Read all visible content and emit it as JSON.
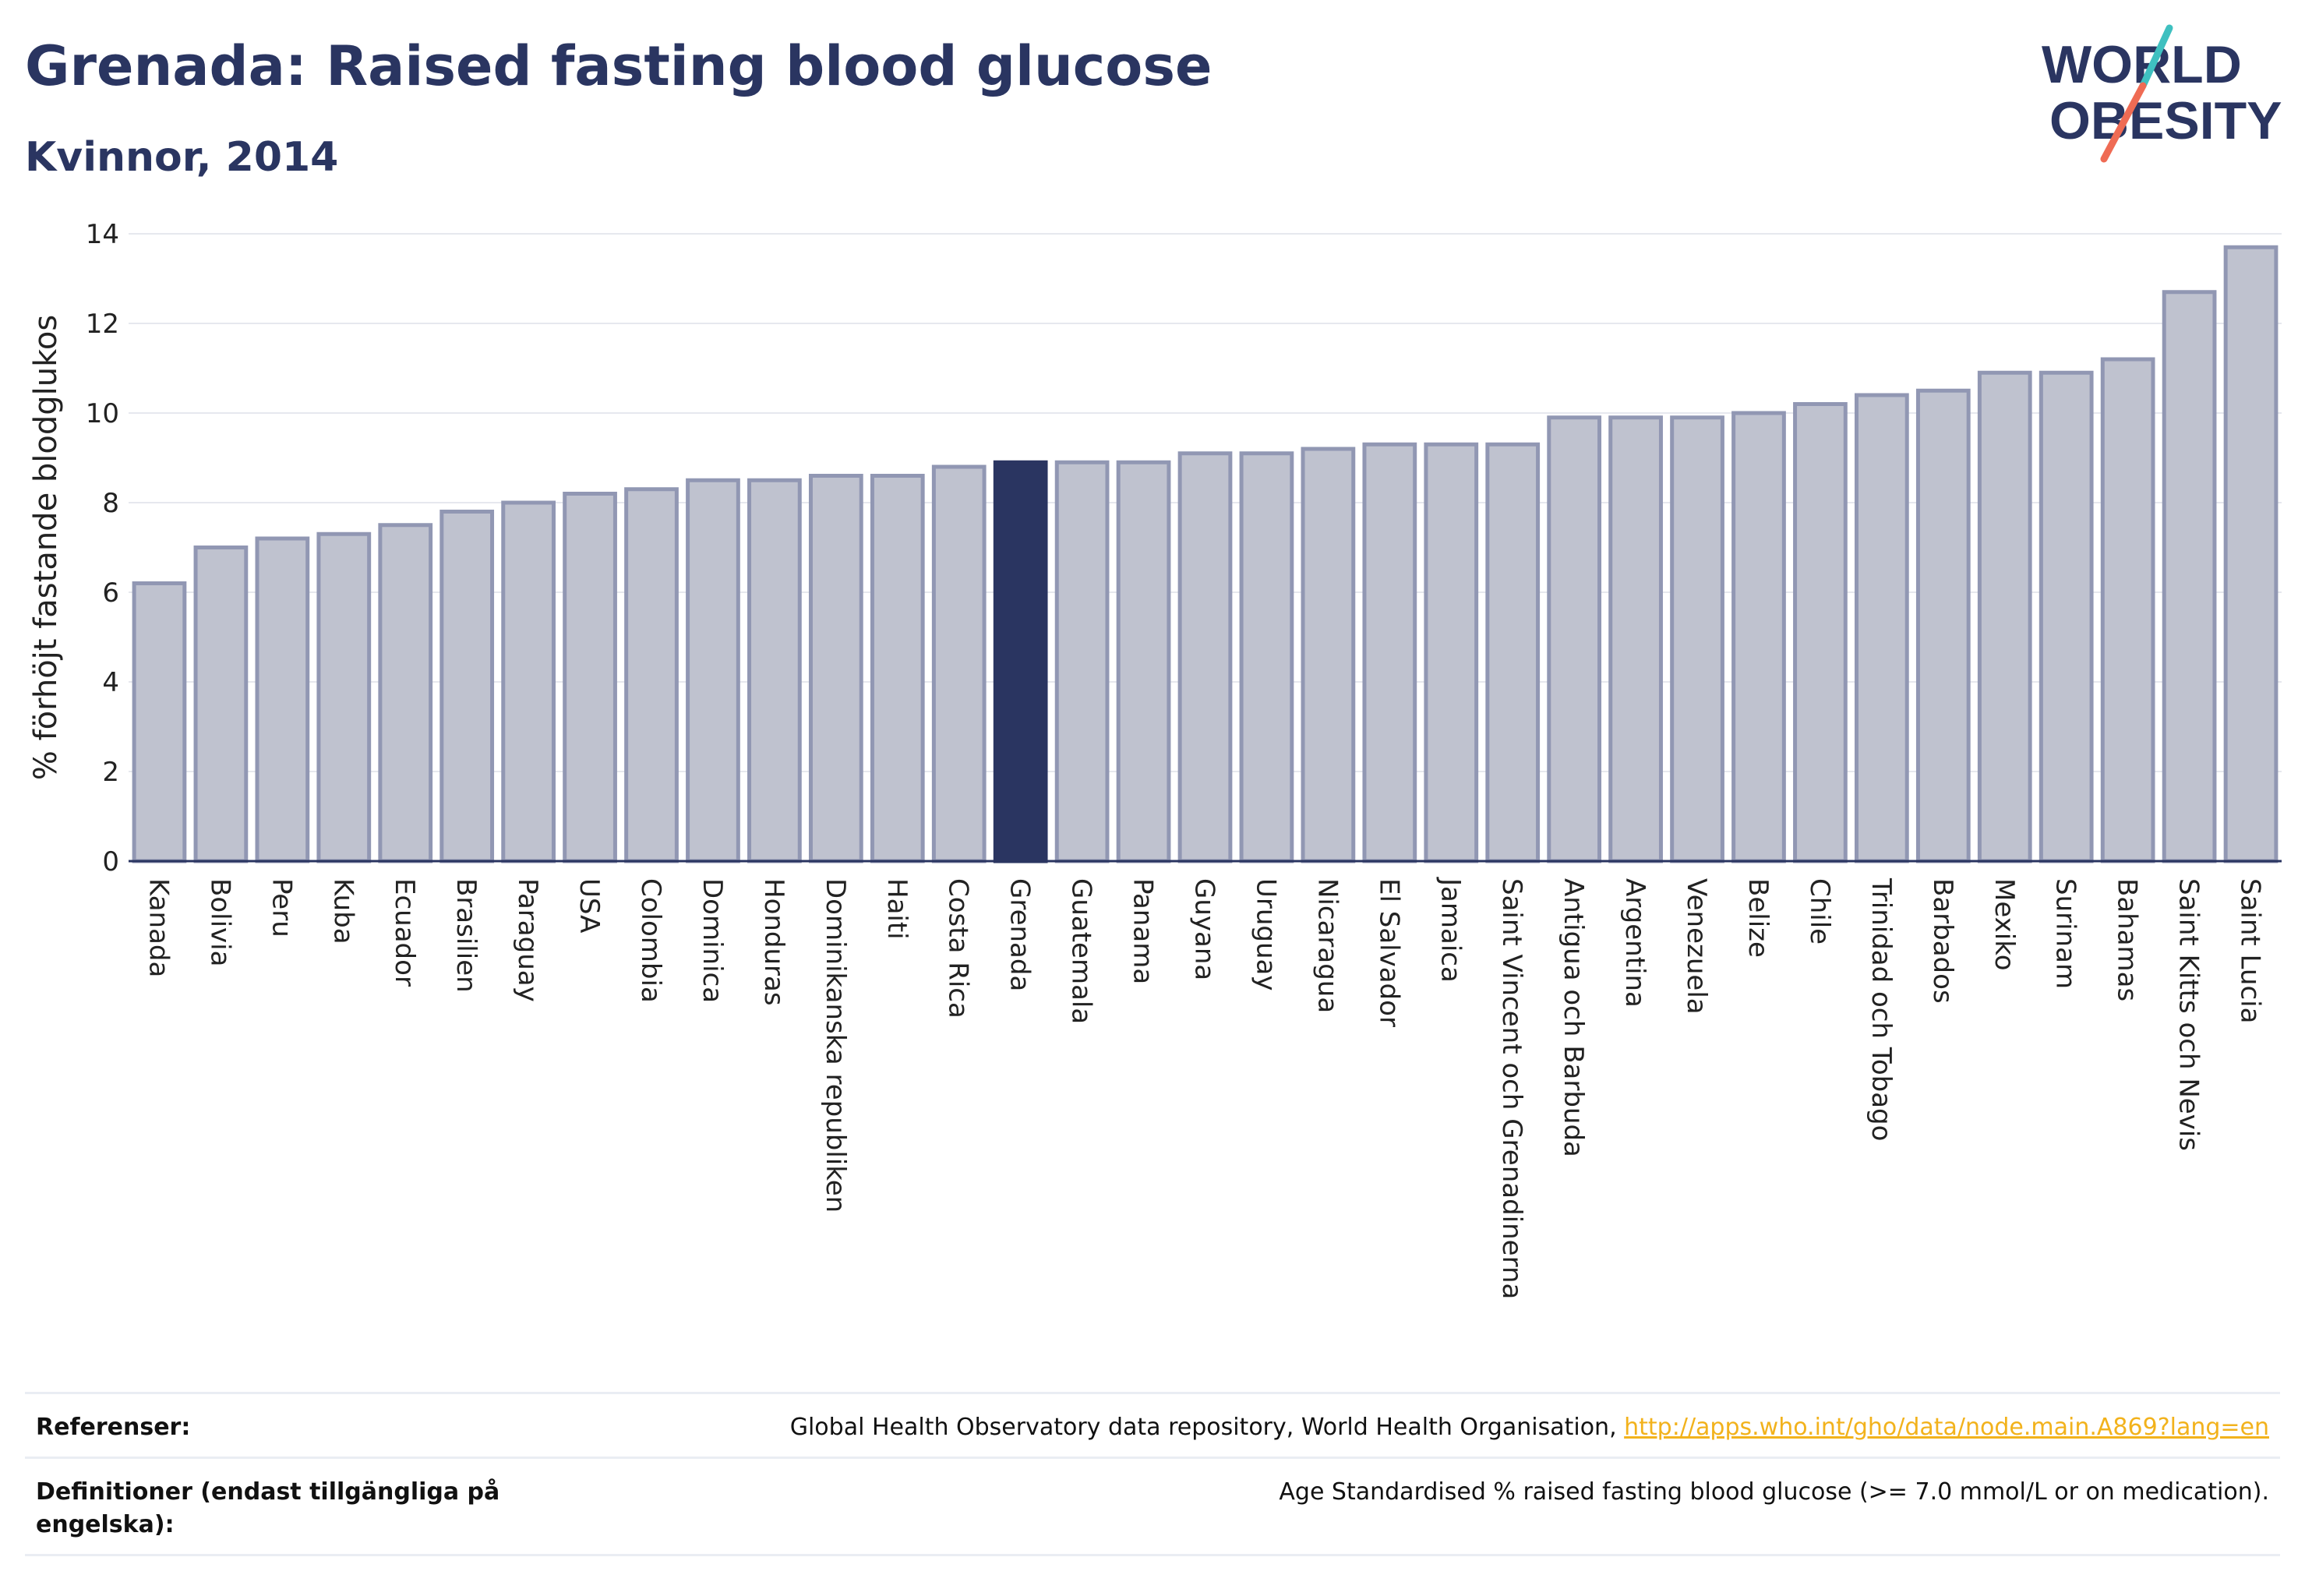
{
  "header": {
    "title": "Grenada: Raised fasting blood glucose",
    "subtitle": "Kvinnor, 2014"
  },
  "logo": {
    "line1": "WORLD",
    "line2": "OBESITY"
  },
  "colors": {
    "bar": "#bfc2cf",
    "bar_edge": "#9197b3",
    "highlight": "#2a3561",
    "title": "#2a3561",
    "link": "#f2b21c",
    "logo_teal": "#3fc0c0",
    "logo_coral": "#ef6b54"
  },
  "chart_data": {
    "type": "bar",
    "title": "Grenada: Raised fasting blood glucose",
    "subtitle": "Kvinnor, 2014",
    "xlabel": "",
    "ylabel": "% förhöjt fastande blodglukos",
    "ylim": [
      0,
      14
    ],
    "yticks": [
      0,
      2,
      4,
      6,
      8,
      10,
      12,
      14
    ],
    "grid": true,
    "highlight": "Grenada",
    "categories": [
      "Kanada",
      "Bolivia",
      "Peru",
      "Kuba",
      "Ecuador",
      "Brasilien",
      "Paraguay",
      "USA",
      "Colombia",
      "Dominica",
      "Honduras",
      "Dominikanska republiken",
      "Haiti",
      "Costa Rica",
      "Grenada",
      "Guatemala",
      "Panama",
      "Guyana",
      "Uruguay",
      "Nicaragua",
      "El Salvador",
      "Jamaica",
      "Saint Vincent och Grenadinerna",
      "Antigua och Barbuda",
      "Argentina",
      "Venezuela",
      "Belize",
      "Chile",
      "Trinidad och Tobago",
      "Barbados",
      "Mexiko",
      "Surinam",
      "Bahamas",
      "Saint Kitts och Nevis",
      "Saint Lucia"
    ],
    "values": [
      6.2,
      7.0,
      7.2,
      7.3,
      7.5,
      7.8,
      8.0,
      8.2,
      8.3,
      8.5,
      8.5,
      8.6,
      8.6,
      8.8,
      8.9,
      8.9,
      8.9,
      9.1,
      9.1,
      9.2,
      9.3,
      9.3,
      9.3,
      9.9,
      9.9,
      9.9,
      10.0,
      10.2,
      10.4,
      10.5,
      10.9,
      10.9,
      11.2,
      12.7,
      13.7
    ]
  },
  "footer": {
    "references_label": "Referenser:",
    "references_text": "Global Health Observatory data repository, World Health Organisation, ",
    "references_link": "http://apps.who.int/gho/data/node.main.A869?lang=en",
    "definitions_label": "Definitioner (endast tillgängliga på engelska):",
    "definitions_text": "Age Standardised % raised fasting blood glucose (>= 7.0 mmol/L or on medication)."
  }
}
